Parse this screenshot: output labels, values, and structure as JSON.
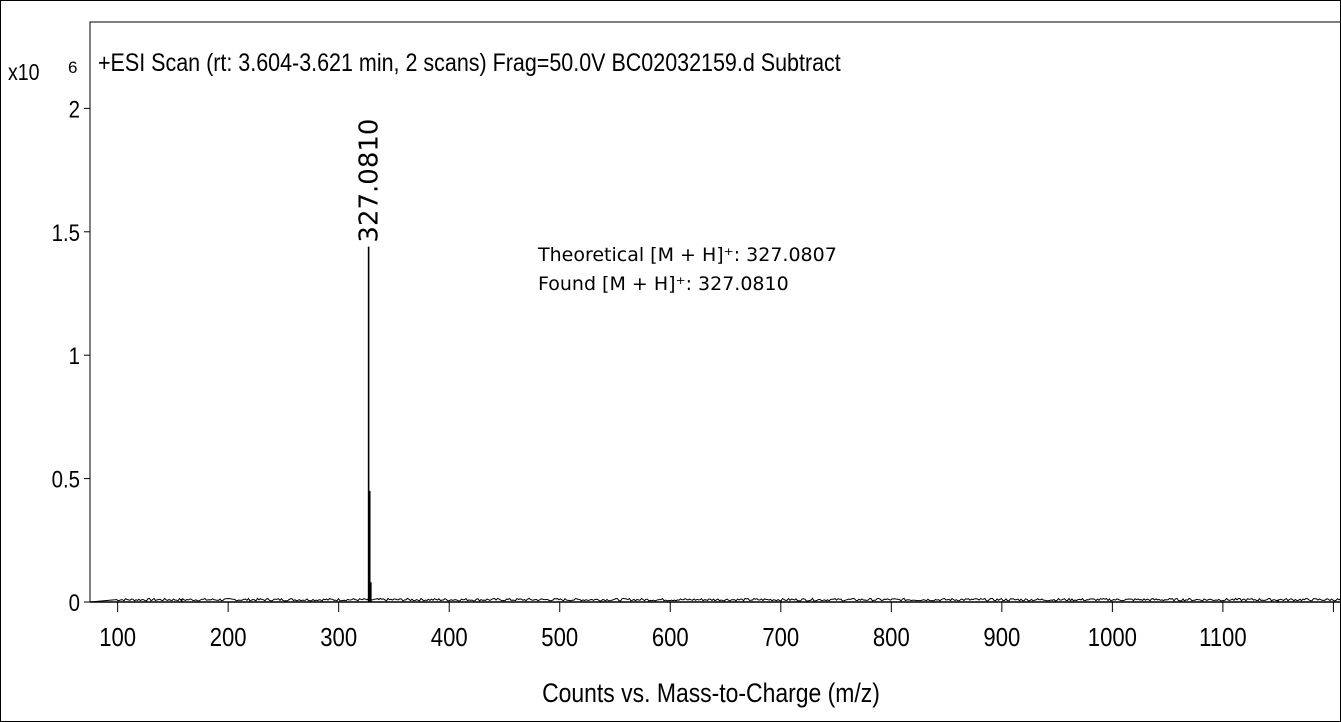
{
  "chart_data": {
    "type": "line",
    "title": "+ESI Scan (rt: 3.604-3.621 min, 2 scans) Frag=50.0V BC02032159.d  Subtract",
    "xlabel": "Counts vs. Mass-to-Charge (m/z)",
    "ylabel": "",
    "y_multiplier_label": "x10",
    "y_multiplier_exp": "6",
    "xlim": [
      75,
      1215
    ],
    "ylim": [
      0,
      2.35
    ],
    "x_ticks": [
      100,
      200,
      300,
      400,
      500,
      600,
      700,
      800,
      900,
      1000,
      1100
    ],
    "y_ticks": [
      {
        "value": 0,
        "label": "0"
      },
      {
        "value": 0.5,
        "label": "0.5"
      },
      {
        "value": 1,
        "label": "1"
      },
      {
        "value": 1.5,
        "label": "1.5"
      },
      {
        "value": 2,
        "label": "2"
      }
    ],
    "grid": false,
    "series": [
      {
        "color": "#000000",
        "peaks": [
          {
            "x": 327.081,
            "y": 1.44
          },
          {
            "x": 328.08,
            "y": 0.45
          },
          {
            "x": 329.08,
            "y": 0.08
          },
          {
            "x": 158,
            "y": 0.012
          },
          {
            "x": 1150,
            "y": 0.01
          }
        ]
      }
    ],
    "peak_labels": [
      {
        "x": 327.081,
        "y": 1.44,
        "text": "327.0810"
      }
    ],
    "annotations": [
      "Theoretical [M + H]⁺: 327.0807",
      "Found [M + H]⁺: 327.0810"
    ]
  }
}
